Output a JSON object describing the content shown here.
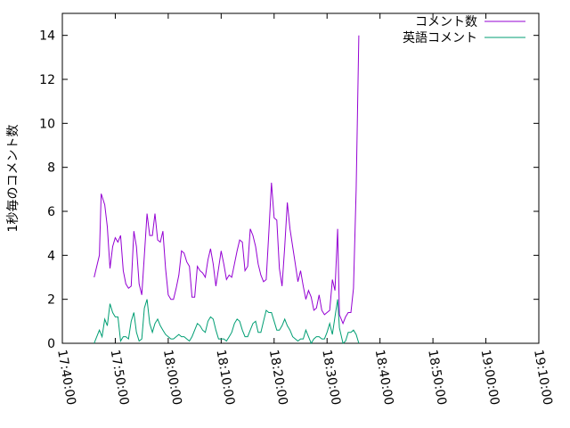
{
  "chart_data": {
    "type": "line",
    "ylabel": "1秒毎のコメント数",
    "xlim": [
      "17:40:00",
      "19:10:00"
    ],
    "ylim": [
      0,
      15
    ],
    "x_ticks": [
      "17:40:00",
      "17:50:00",
      "18:00:00",
      "18:10:00",
      "18:20:00",
      "18:30:00",
      "18:40:00",
      "18:50:00",
      "19:00:00",
      "19:10:00"
    ],
    "y_ticks": [
      0,
      2,
      4,
      6,
      8,
      10,
      12,
      14
    ],
    "legend_position": "top-right",
    "grid": false,
    "series": [
      {
        "name": "コメント数",
        "color": "#9400d3",
        "points": [
          [
            "17:46:00",
            3.0
          ],
          [
            "17:47:00",
            4.0
          ],
          [
            "17:47:20",
            6.8
          ],
          [
            "17:48:00",
            6.3
          ],
          [
            "17:48:30",
            5.3
          ],
          [
            "17:49:00",
            3.4
          ],
          [
            "17:49:30",
            4.4
          ],
          [
            "17:50:00",
            4.8
          ],
          [
            "17:50:30",
            4.6
          ],
          [
            "17:51:00",
            4.9
          ],
          [
            "17:51:30",
            3.3
          ],
          [
            "17:52:00",
            2.7
          ],
          [
            "17:52:30",
            2.5
          ],
          [
            "17:53:00",
            2.6
          ],
          [
            "17:53:30",
            5.1
          ],
          [
            "17:54:00",
            4.4
          ],
          [
            "17:54:30",
            2.7
          ],
          [
            "17:55:00",
            2.2
          ],
          [
            "17:55:30",
            4.0
          ],
          [
            "17:56:00",
            5.9
          ],
          [
            "17:56:30",
            4.9
          ],
          [
            "17:57:00",
            4.9
          ],
          [
            "17:57:30",
            5.9
          ],
          [
            "17:58:00",
            4.7
          ],
          [
            "17:58:30",
            4.6
          ],
          [
            "17:59:00",
            5.1
          ],
          [
            "17:59:30",
            3.4
          ],
          [
            "18:00:00",
            2.2
          ],
          [
            "18:00:30",
            2.0
          ],
          [
            "18:01:00",
            2.0
          ],
          [
            "18:01:30",
            2.5
          ],
          [
            "18:02:00",
            3.1
          ],
          [
            "18:02:30",
            4.2
          ],
          [
            "18:03:00",
            4.1
          ],
          [
            "18:03:30",
            3.7
          ],
          [
            "18:04:00",
            3.5
          ],
          [
            "18:04:30",
            2.1
          ],
          [
            "18:05:00",
            2.1
          ],
          [
            "18:05:30",
            3.5
          ],
          [
            "18:06:00",
            3.3
          ],
          [
            "18:06:30",
            3.2
          ],
          [
            "18:07:00",
            3.0
          ],
          [
            "18:07:30",
            3.8
          ],
          [
            "18:08:00",
            4.3
          ],
          [
            "18:08:30",
            3.6
          ],
          [
            "18:09:00",
            2.6
          ],
          [
            "18:09:30",
            3.4
          ],
          [
            "18:10:00",
            4.2
          ],
          [
            "18:10:30",
            3.6
          ],
          [
            "18:11:00",
            2.9
          ],
          [
            "18:11:30",
            3.1
          ],
          [
            "18:12:00",
            3.0
          ],
          [
            "18:12:30",
            3.6
          ],
          [
            "18:13:00",
            4.2
          ],
          [
            "18:13:30",
            4.7
          ],
          [
            "18:14:00",
            4.6
          ],
          [
            "18:14:30",
            3.3
          ],
          [
            "18:15:00",
            3.5
          ],
          [
            "18:15:30",
            5.2
          ],
          [
            "18:16:00",
            4.9
          ],
          [
            "18:16:30",
            4.4
          ],
          [
            "18:17:00",
            3.6
          ],
          [
            "18:17:30",
            3.1
          ],
          [
            "18:18:00",
            2.8
          ],
          [
            "18:18:30",
            2.9
          ],
          [
            "18:19:00",
            5.0
          ],
          [
            "18:19:30",
            7.3
          ],
          [
            "18:20:00",
            5.7
          ],
          [
            "18:20:30",
            5.6
          ],
          [
            "18:21:00",
            3.4
          ],
          [
            "18:21:30",
            2.6
          ],
          [
            "18:22:00",
            4.4
          ],
          [
            "18:22:30",
            6.4
          ],
          [
            "18:23:00",
            5.2
          ],
          [
            "18:23:30",
            4.4
          ],
          [
            "18:24:00",
            3.6
          ],
          [
            "18:24:30",
            2.8
          ],
          [
            "18:25:00",
            3.3
          ],
          [
            "18:25:30",
            2.6
          ],
          [
            "18:26:00",
            2.0
          ],
          [
            "18:26:30",
            2.4
          ],
          [
            "18:27:00",
            2.1
          ],
          [
            "18:27:30",
            1.5
          ],
          [
            "18:28:00",
            1.6
          ],
          [
            "18:28:30",
            2.2
          ],
          [
            "18:29:00",
            1.5
          ],
          [
            "18:29:30",
            1.3
          ],
          [
            "18:30:00",
            1.4
          ],
          [
            "18:30:30",
            1.5
          ],
          [
            "18:31:00",
            2.9
          ],
          [
            "18:31:30",
            2.4
          ],
          [
            "18:32:00",
            5.2
          ],
          [
            "18:32:20",
            1.3
          ],
          [
            "18:33:00",
            0.9
          ],
          [
            "18:33:30",
            1.2
          ],
          [
            "18:34:00",
            1.4
          ],
          [
            "18:34:30",
            1.4
          ],
          [
            "18:35:00",
            2.5
          ],
          [
            "18:35:30",
            7.0
          ],
          [
            "18:36:00",
            14.0
          ]
        ]
      },
      {
        "name": "英語コメント",
        "color": "#009e73",
        "points": [
          [
            "17:46:00",
            0.0
          ],
          [
            "17:47:00",
            0.6
          ],
          [
            "17:47:30",
            0.3
          ],
          [
            "17:48:00",
            1.1
          ],
          [
            "17:48:30",
            0.8
          ],
          [
            "17:49:00",
            1.8
          ],
          [
            "17:49:30",
            1.4
          ],
          [
            "17:50:00",
            1.2
          ],
          [
            "17:50:30",
            1.2
          ],
          [
            "17:51:00",
            0.1
          ],
          [
            "17:51:30",
            0.3
          ],
          [
            "17:52:00",
            0.3
          ],
          [
            "17:52:30",
            0.2
          ],
          [
            "17:53:00",
            1.0
          ],
          [
            "17:53:30",
            1.4
          ],
          [
            "17:54:00",
            0.5
          ],
          [
            "17:54:30",
            0.1
          ],
          [
            "17:55:00",
            0.2
          ],
          [
            "17:55:30",
            1.6
          ],
          [
            "17:56:00",
            2.0
          ],
          [
            "17:56:30",
            0.9
          ],
          [
            "17:57:00",
            0.5
          ],
          [
            "17:57:30",
            0.9
          ],
          [
            "17:58:00",
            1.1
          ],
          [
            "17:58:30",
            0.8
          ],
          [
            "17:59:00",
            0.6
          ],
          [
            "17:59:30",
            0.4
          ],
          [
            "18:00:00",
            0.3
          ],
          [
            "18:00:30",
            0.2
          ],
          [
            "18:01:00",
            0.2
          ],
          [
            "18:01:30",
            0.3
          ],
          [
            "18:02:00",
            0.4
          ],
          [
            "18:02:30",
            0.3
          ],
          [
            "18:03:00",
            0.3
          ],
          [
            "18:03:30",
            0.2
          ],
          [
            "18:04:00",
            0.1
          ],
          [
            "18:04:30",
            0.3
          ],
          [
            "18:05:00",
            0.6
          ],
          [
            "18:05:30",
            0.9
          ],
          [
            "18:06:00",
            0.8
          ],
          [
            "18:06:30",
            0.6
          ],
          [
            "18:07:00",
            0.5
          ],
          [
            "18:07:30",
            1.0
          ],
          [
            "18:08:00",
            1.2
          ],
          [
            "18:08:30",
            1.1
          ],
          [
            "18:09:00",
            0.6
          ],
          [
            "18:09:30",
            0.2
          ],
          [
            "18:10:00",
            0.2
          ],
          [
            "18:10:30",
            0.2
          ],
          [
            "18:11:00",
            0.1
          ],
          [
            "18:11:30",
            0.3
          ],
          [
            "18:12:00",
            0.5
          ],
          [
            "18:12:30",
            0.9
          ],
          [
            "18:13:00",
            1.1
          ],
          [
            "18:13:30",
            1.0
          ],
          [
            "18:14:00",
            0.6
          ],
          [
            "18:14:30",
            0.3
          ],
          [
            "18:15:00",
            0.3
          ],
          [
            "18:15:30",
            0.6
          ],
          [
            "18:16:00",
            0.9
          ],
          [
            "18:16:30",
            1.0
          ],
          [
            "18:17:00",
            0.5
          ],
          [
            "18:17:30",
            0.5
          ],
          [
            "18:18:00",
            1.0
          ],
          [
            "18:18:30",
            1.5
          ],
          [
            "18:19:00",
            1.4
          ],
          [
            "18:19:30",
            1.4
          ],
          [
            "18:20:00",
            1.0
          ],
          [
            "18:20:30",
            0.6
          ],
          [
            "18:21:00",
            0.6
          ],
          [
            "18:21:30",
            0.8
          ],
          [
            "18:22:00",
            1.1
          ],
          [
            "18:22:30",
            0.8
          ],
          [
            "18:23:00",
            0.6
          ],
          [
            "18:23:30",
            0.3
          ],
          [
            "18:24:00",
            0.2
          ],
          [
            "18:24:30",
            0.1
          ],
          [
            "18:25:00",
            0.2
          ],
          [
            "18:25:30",
            0.2
          ],
          [
            "18:26:00",
            0.6
          ],
          [
            "18:26:30",
            0.3
          ],
          [
            "18:27:00",
            0.0
          ],
          [
            "18:27:30",
            0.2
          ],
          [
            "18:28:00",
            0.3
          ],
          [
            "18:28:30",
            0.3
          ],
          [
            "18:29:00",
            0.2
          ],
          [
            "18:29:30",
            0.2
          ],
          [
            "18:30:00",
            0.5
          ],
          [
            "18:30:30",
            0.9
          ],
          [
            "18:31:00",
            0.4
          ],
          [
            "18:31:30",
            1.2
          ],
          [
            "18:32:00",
            2.0
          ],
          [
            "18:32:20",
            0.7
          ],
          [
            "18:33:00",
            0.0
          ],
          [
            "18:33:30",
            0.1
          ],
          [
            "18:34:00",
            0.5
          ],
          [
            "18:34:30",
            0.5
          ],
          [
            "18:35:00",
            0.6
          ],
          [
            "18:35:30",
            0.4
          ],
          [
            "18:36:00",
            0.0
          ]
        ]
      }
    ]
  }
}
